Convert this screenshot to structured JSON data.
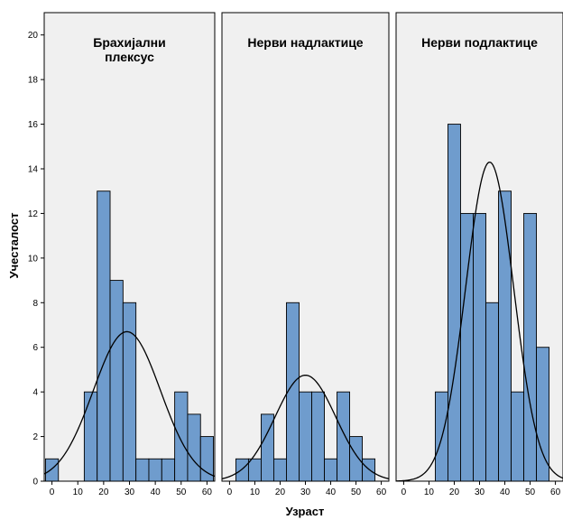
{
  "chart_data": {
    "type": "bar",
    "subtype": "histogram-panels-with-normal-curve",
    "ylabel": "Учесталост",
    "xlabel": "Узраст",
    "ylim": [
      0,
      21
    ],
    "y_ticks": [
      0,
      2,
      4,
      6,
      8,
      10,
      12,
      14,
      16,
      18,
      20
    ],
    "x_ticks": [
      0,
      10,
      20,
      30,
      40,
      50,
      60
    ],
    "bar_color": "#6f9ccd",
    "panel_bg": "#f0f0f0",
    "bin_width": 5,
    "panels": [
      {
        "title_lines": [
          "Брахијални",
          "плексус"
        ],
        "xlim": [
          -3,
          63
        ],
        "bins": [
          {
            "x": 0,
            "count": 1
          },
          {
            "x": 15,
            "count": 4
          },
          {
            "x": 20,
            "count": 13
          },
          {
            "x": 25,
            "count": 9
          },
          {
            "x": 30,
            "count": 8
          },
          {
            "x": 35,
            "count": 1
          },
          {
            "x": 40,
            "count": 1
          },
          {
            "x": 45,
            "count": 1
          },
          {
            "x": 50,
            "count": 4
          },
          {
            "x": 55,
            "count": 3
          },
          {
            "x": 60,
            "count": 2
          }
        ],
        "normal_curve": {
          "mean": 29,
          "peak": 6.7,
          "sd": 13
        }
      },
      {
        "title_lines": [
          "Нерви надлактице"
        ],
        "xlim": [
          -3,
          63
        ],
        "bins": [
          {
            "x": 5,
            "count": 1
          },
          {
            "x": 10,
            "count": 1
          },
          {
            "x": 15,
            "count": 3
          },
          {
            "x": 20,
            "count": 1
          },
          {
            "x": 25,
            "count": 8
          },
          {
            "x": 30,
            "count": 4
          },
          {
            "x": 35,
            "count": 4
          },
          {
            "x": 40,
            "count": 1
          },
          {
            "x": 45,
            "count": 4
          },
          {
            "x": 50,
            "count": 2
          },
          {
            "x": 55,
            "count": 1
          }
        ],
        "normal_curve": {
          "mean": 30,
          "peak": 4.75,
          "sd": 12
        }
      },
      {
        "title_lines": [
          "Нерви подлактице"
        ],
        "xlim": [
          -3,
          63
        ],
        "bins": [
          {
            "x": 15,
            "count": 4
          },
          {
            "x": 20,
            "count": 16
          },
          {
            "x": 25,
            "count": 12
          },
          {
            "x": 30,
            "count": 12
          },
          {
            "x": 35,
            "count": 8
          },
          {
            "x": 40,
            "count": 13
          },
          {
            "x": 45,
            "count": 4
          },
          {
            "x": 50,
            "count": 12
          },
          {
            "x": 55,
            "count": 6
          }
        ],
        "normal_curve": {
          "mean": 34,
          "peak": 14.3,
          "sd": 9.5
        }
      }
    ]
  }
}
